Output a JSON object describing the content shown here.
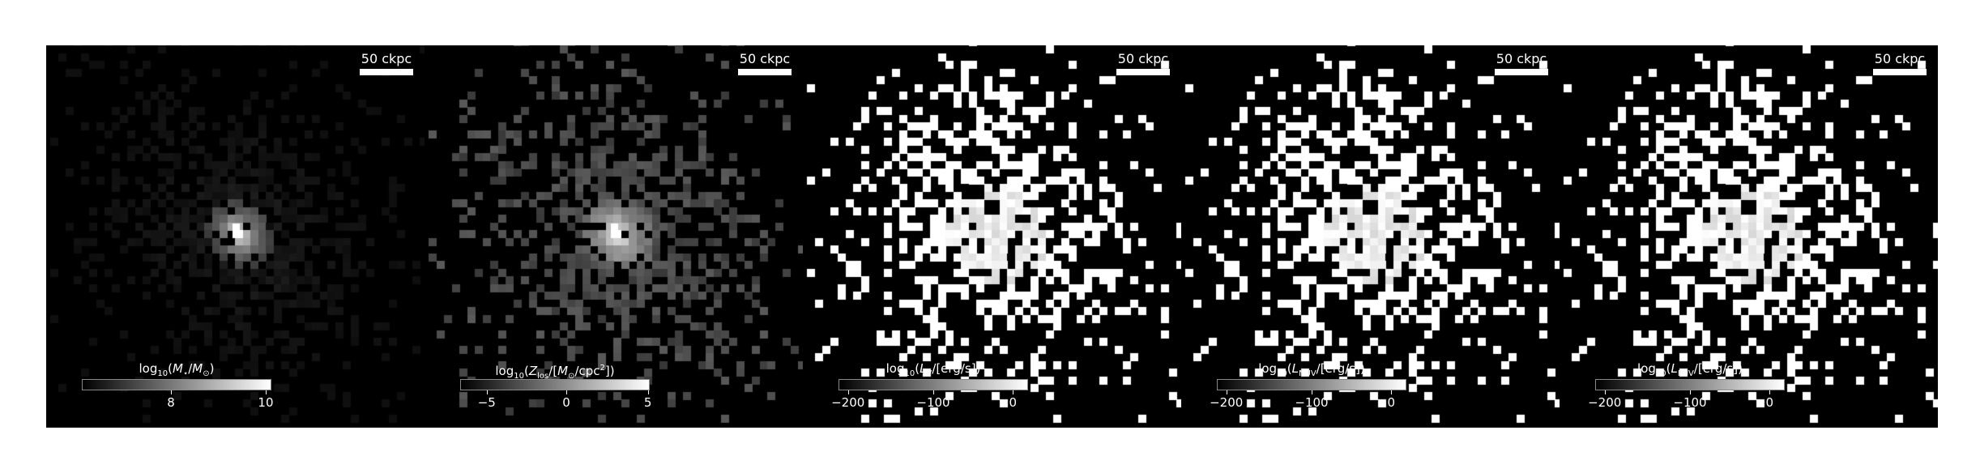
{
  "panels": [
    {
      "scalebar": "50 ckpc",
      "colorbar": {
        "label_parts": [
          "log",
          "10",
          "(",
          "M",
          "⋆",
          "/",
          "M",
          "⊙",
          ")"
        ],
        "ticks": [
          "8",
          "10"
        ],
        "tick_fractions": [
          0.47,
          0.97
        ]
      },
      "style": "stellar-mass"
    },
    {
      "scalebar": "50 ckpc",
      "colorbar": {
        "label_parts": [
          "log",
          "10",
          "(",
          "Z",
          "los",
          "/[",
          "M",
          "⊙",
          "/cpc",
          "2",
          "])"
        ],
        "ticks": [
          "−5",
          "0",
          "5"
        ],
        "tick_fractions": [
          0.14,
          0.56,
          0.99
        ]
      },
      "style": "metallicity"
    },
    {
      "scalebar": "50 ckpc",
      "colorbar": {
        "label_parts": [
          "log",
          "10",
          "(",
          "L",
          "V",
          "/[erg/s])"
        ],
        "ticks": [
          "−200",
          "−100",
          "0"
        ],
        "tick_fractions": [
          0.05,
          0.5,
          0.92
        ]
      },
      "style": "luminosity"
    },
    {
      "scalebar": "50 ckpc",
      "colorbar": {
        "label_parts": [
          "log",
          "10",
          "(",
          "L",
          "NUV",
          "/[erg/s])"
        ],
        "ticks": [
          "−200",
          "−100",
          "0"
        ],
        "tick_fractions": [
          0.05,
          0.5,
          0.92
        ]
      },
      "style": "luminosity"
    },
    {
      "scalebar": "50 ckpc",
      "colorbar": {
        "label_parts": [
          "log",
          "10",
          "(",
          "L",
          "FUV",
          "/[erg/s])"
        ],
        "ticks": [
          "−200",
          "−100",
          "0"
        ],
        "tick_fractions": [
          0.05,
          0.5,
          0.92
        ]
      },
      "style": "luminosity"
    }
  ]
}
